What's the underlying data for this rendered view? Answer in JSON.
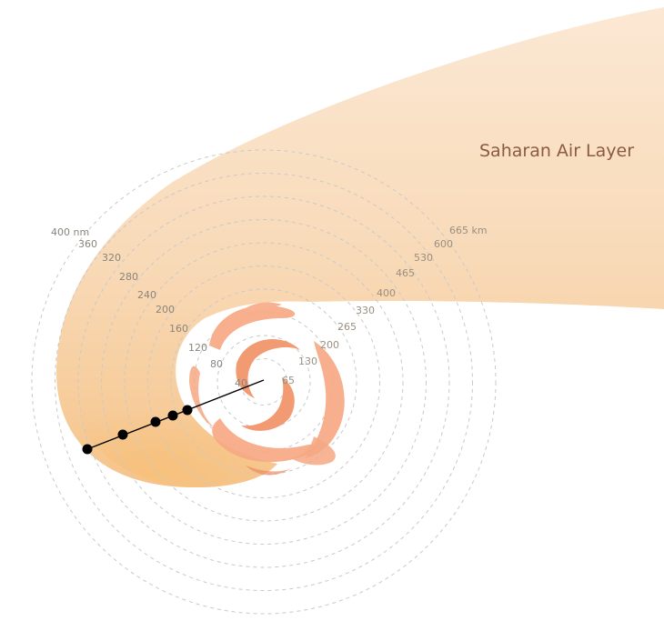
{
  "diagram": {
    "title": "Saharan Air Layer",
    "nm_labels": [
      {
        "text": "40"
      },
      {
        "text": "80"
      },
      {
        "text": "120"
      },
      {
        "text": "160"
      },
      {
        "text": "200"
      },
      {
        "text": "240"
      },
      {
        "text": "280"
      },
      {
        "text": "320"
      },
      {
        "text": "360"
      },
      {
        "text": "400 nm"
      }
    ],
    "km_labels": [
      {
        "text": "65"
      },
      {
        "text": "130"
      },
      {
        "text": "200"
      },
      {
        "text": "265"
      },
      {
        "text": "330"
      },
      {
        "text": "400"
      },
      {
        "text": "465"
      },
      {
        "text": "530"
      },
      {
        "text": "600"
      },
      {
        "text": "665 km"
      }
    ],
    "colors": {
      "sal_light": "#fbe9d6",
      "sal_mid": "#f7d5ad",
      "sal_dark": "#f6c07f",
      "cloud": "#f6a884",
      "cloud_dark": "#ec8a64",
      "rings": "#c9c9c9",
      "track": "#000000"
    }
  }
}
